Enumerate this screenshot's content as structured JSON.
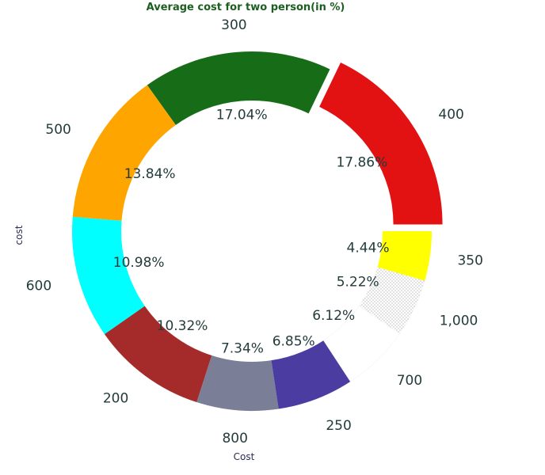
{
  "chart_data": {
    "type": "pie",
    "variant": "donut",
    "title": "Average cost for two person(in %)",
    "xlabel": "Cost",
    "ylabel": "cost",
    "start_angle_deg": 0,
    "direction": "counterclockwise",
    "slices": [
      {
        "label": "400",
        "value": 17.86,
        "pct_label": "17.86%",
        "color": "#e31212",
        "explode": true
      },
      {
        "label": "300",
        "value": 17.04,
        "pct_label": "17.04%",
        "color": "#176d17",
        "explode": false
      },
      {
        "label": "500",
        "value": 13.84,
        "pct_label": "13.84%",
        "color": "#ffa500",
        "explode": false
      },
      {
        "label": "600",
        "value": 10.98,
        "pct_label": "10.98%",
        "color": "#00ffff",
        "explode": false
      },
      {
        "label": "200",
        "value": 10.32,
        "pct_label": "10.32%",
        "color": "#a52a2a",
        "explode": false
      },
      {
        "label": "800",
        "value": 7.34,
        "pct_label": "7.34%",
        "color": "#7a7e96",
        "explode": false
      },
      {
        "label": "250",
        "value": 6.85,
        "pct_label": "6.85%",
        "color": "#4b3ca2",
        "explode": false
      },
      {
        "label": "700",
        "value": 6.12,
        "pct_label": "6.12%",
        "color": "#ffffff",
        "explode": false
      },
      {
        "label": "1,000",
        "value": 5.22,
        "pct_label": "5.22%",
        "color": "#f2f2f2",
        "explode": false
      },
      {
        "label": "350",
        "value": 4.44,
        "pct_label": "4.44%",
        "color": "#ffff00",
        "explode": false
      }
    ]
  }
}
